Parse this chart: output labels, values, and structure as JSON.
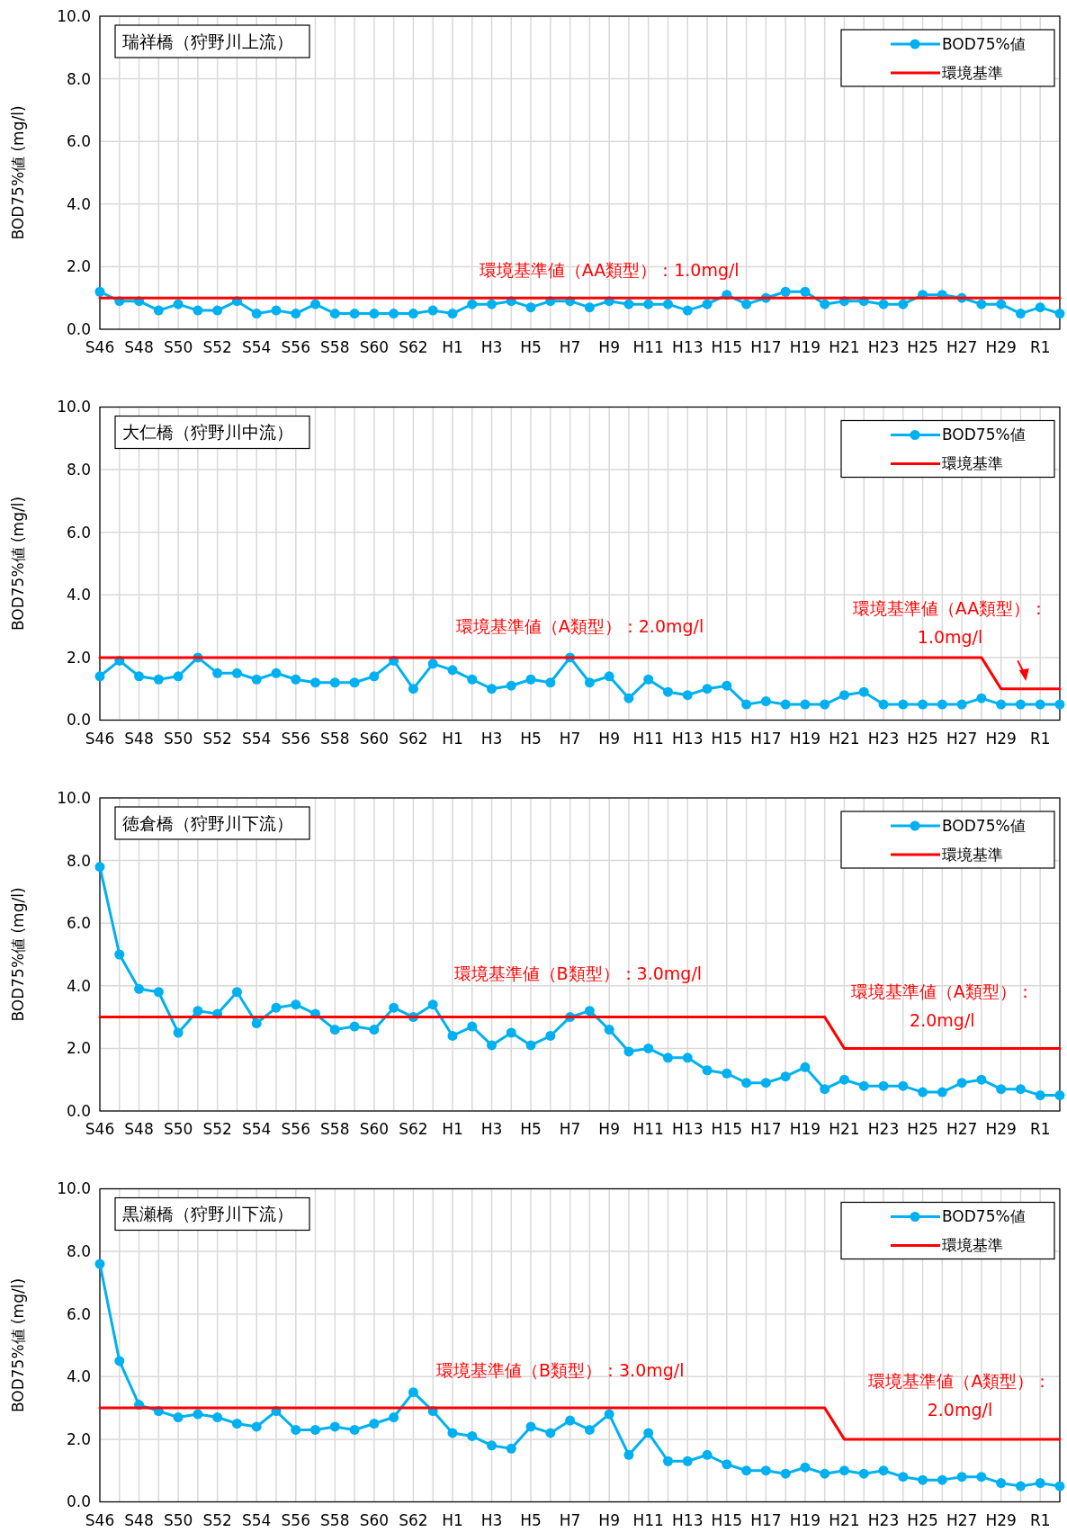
{
  "chart_data": [
    {
      "type": "line",
      "title": "瑞祥橋（狩野川上流）",
      "ylabel": "BOD75%値 (mg/l)",
      "categories": [
        "S46",
        null,
        "S48",
        null,
        "S50",
        null,
        "S52",
        null,
        "S54",
        null,
        "S56",
        null,
        "S58",
        null,
        "S60",
        null,
        "S62",
        null,
        "H1",
        null,
        "H3",
        null,
        "H5",
        null,
        "H7",
        null,
        "H9",
        null,
        "H11",
        null,
        "H13",
        null,
        "H15",
        null,
        "H17",
        null,
        "H19",
        null,
        "H21",
        null,
        "H23",
        null,
        "H25",
        null,
        "H27",
        null,
        "H29",
        null,
        "R1",
        null
      ],
      "series": [
        {
          "name": "BOD75%値",
          "color": "#00b0f0",
          "values": [
            1.2,
            0.9,
            0.9,
            0.6,
            0.8,
            0.6,
            0.6,
            0.9,
            0.5,
            0.6,
            0.5,
            0.8,
            0.5,
            0.5,
            0.5,
            0.5,
            0.5,
            0.6,
            0.5,
            0.8,
            0.8,
            0.9,
            0.7,
            0.9,
            0.9,
            0.7,
            0.9,
            0.8,
            0.8,
            0.8,
            0.6,
            0.8,
            1.1,
            0.8,
            1.0,
            1.2,
            1.2,
            0.8,
            0.9,
            0.9,
            0.8,
            0.8,
            1.1,
            1.1,
            1.0,
            0.8,
            0.8,
            0.5,
            0.7,
            0.5
          ]
        },
        {
          "name": "環境基準",
          "color": "#ff0000",
          "marker": "none",
          "values": [
            1,
            1,
            1,
            1,
            1,
            1,
            1,
            1,
            1,
            1,
            1,
            1,
            1,
            1,
            1,
            1,
            1,
            1,
            1,
            1,
            1,
            1,
            1,
            1,
            1,
            1,
            1,
            1,
            1,
            1,
            1,
            1,
            1,
            1,
            1,
            1,
            1,
            1,
            1,
            1,
            1,
            1,
            1,
            1,
            1,
            1,
            1,
            1,
            1,
            1
          ]
        }
      ],
      "ylim": [
        0,
        10
      ],
      "yticks": [
        {
          "value": 0,
          "label": "0.0"
        },
        {
          "value": 2,
          "label": "2.0"
        },
        {
          "value": 4,
          "label": "4.0"
        },
        {
          "value": 6,
          "label": "6.0"
        },
        {
          "value": 8,
          "label": "8.0"
        },
        {
          "value": 10,
          "label": "10.0"
        }
      ],
      "grid": true,
      "legend": "top right",
      "marker": "circle",
      "annotations": [
        "環境基準値（AA類型）：1.0mg/l"
      ]
    },
    {
      "type": "line",
      "title": "大仁橋（狩野川中流）",
      "ylabel": "BOD75%値 (mg/l)",
      "categories": [
        "S46",
        null,
        "S48",
        null,
        "S50",
        null,
        "S52",
        null,
        "S54",
        null,
        "S56",
        null,
        "S58",
        null,
        "S60",
        null,
        "S62",
        null,
        "H1",
        null,
        "H3",
        null,
        "H5",
        null,
        "H7",
        null,
        "H9",
        null,
        "H11",
        null,
        "H13",
        null,
        "H15",
        null,
        "H17",
        null,
        "H19",
        null,
        "H21",
        null,
        "H23",
        null,
        "H25",
        null,
        "H27",
        null,
        "H29",
        null,
        "R1",
        null
      ],
      "series": [
        {
          "name": "BOD75%値",
          "color": "#00b0f0",
          "values": [
            1.4,
            1.9,
            1.4,
            1.3,
            1.4,
            2.0,
            1.5,
            1.5,
            1.3,
            1.5,
            1.3,
            1.2,
            1.2,
            1.2,
            1.4,
            1.9,
            1.0,
            1.8,
            1.6,
            1.3,
            1.0,
            1.1,
            1.3,
            1.2,
            2.0,
            1.2,
            1.4,
            0.7,
            1.3,
            0.9,
            0.8,
            1.0,
            1.1,
            0.5,
            0.6,
            0.5,
            0.5,
            0.5,
            0.8,
            0.9,
            0.5,
            0.5,
            0.5,
            0.5,
            0.5,
            0.7,
            0.5,
            0.5,
            0.5,
            0.5
          ]
        },
        {
          "name": "環境基準",
          "color": "#ff0000",
          "marker": "none",
          "values": [
            2,
            2,
            2,
            2,
            2,
            2,
            2,
            2,
            2,
            2,
            2,
            2,
            2,
            2,
            2,
            2,
            2,
            2,
            2,
            2,
            2,
            2,
            2,
            2,
            2,
            2,
            2,
            2,
            2,
            2,
            2,
            2,
            2,
            2,
            2,
            2,
            2,
            2,
            2,
            2,
            2,
            2,
            2,
            2,
            2,
            2,
            1,
            1,
            1,
            1
          ]
        }
      ],
      "ylim": [
        0,
        10
      ],
      "yticks": [
        {
          "value": 0,
          "label": "0.0"
        },
        {
          "value": 2,
          "label": "2.0"
        },
        {
          "value": 4,
          "label": "4.0"
        },
        {
          "value": 6,
          "label": "6.0"
        },
        {
          "value": 8,
          "label": "8.0"
        },
        {
          "value": 10,
          "label": "10.0"
        }
      ],
      "grid": true,
      "legend": "top right",
      "marker": "circle",
      "annotations": [
        "環境基準値（A類型）：2.0mg/l",
        "環境基準値（AA類型）：1.0mg/l"
      ]
    },
    {
      "type": "line",
      "title": "徳倉橋（狩野川下流）",
      "ylabel": "BOD75%値 (mg/l)",
      "categories": [
        "S46",
        null,
        "S48",
        null,
        "S50",
        null,
        "S52",
        null,
        "S54",
        null,
        "S56",
        null,
        "S58",
        null,
        "S60",
        null,
        "S62",
        null,
        "H1",
        null,
        "H3",
        null,
        "H5",
        null,
        "H7",
        null,
        "H9",
        null,
        "H11",
        null,
        "H13",
        null,
        "H15",
        null,
        "H17",
        null,
        "H19",
        null,
        "H21",
        null,
        "H23",
        null,
        "H25",
        null,
        "H27",
        null,
        "H29",
        null,
        "R1",
        null
      ],
      "series": [
        {
          "name": "BOD75%値",
          "color": "#00b0f0",
          "values": [
            7.8,
            5.0,
            3.9,
            3.8,
            2.5,
            3.2,
            3.1,
            3.8,
            2.8,
            3.3,
            3.4,
            3.1,
            2.6,
            2.7,
            2.6,
            3.3,
            3.0,
            3.4,
            2.4,
            2.7,
            2.1,
            2.5,
            2.1,
            2.4,
            3.0,
            3.2,
            2.6,
            1.9,
            2.0,
            1.7,
            1.7,
            1.3,
            1.2,
            0.9,
            0.9,
            1.1,
            1.4,
            0.7,
            1.0,
            0.8,
            0.8,
            0.8,
            0.6,
            0.6,
            0.9,
            1.0,
            0.7,
            0.7,
            0.5,
            0.5
          ]
        },
        {
          "name": "環境基準",
          "color": "#ff0000",
          "marker": "none",
          "values": [
            3,
            3,
            3,
            3,
            3,
            3,
            3,
            3,
            3,
            3,
            3,
            3,
            3,
            3,
            3,
            3,
            3,
            3,
            3,
            3,
            3,
            3,
            3,
            3,
            3,
            3,
            3,
            3,
            3,
            3,
            3,
            3,
            3,
            3,
            3,
            3,
            3,
            3,
            2,
            2,
            2,
            2,
            2,
            2,
            2,
            2,
            2,
            2,
            2,
            2
          ]
        }
      ],
      "ylim": [
        0,
        10
      ],
      "yticks": [
        {
          "value": 0,
          "label": "0.0"
        },
        {
          "value": 2,
          "label": "2.0"
        },
        {
          "value": 4,
          "label": "4.0"
        },
        {
          "value": 6,
          "label": "6.0"
        },
        {
          "value": 8,
          "label": "8.0"
        },
        {
          "value": 10,
          "label": "10.0"
        }
      ],
      "grid": true,
      "legend": "top right",
      "marker": "circle",
      "annotations": [
        "環境基準値（B類型）：3.0mg/l",
        "環境基準値（A類型）：2.0mg/l"
      ]
    },
    {
      "type": "line",
      "title": "黒瀬橋（狩野川下流）",
      "ylabel": "BOD75%値 (mg/l)",
      "categories": [
        "S46",
        null,
        "S48",
        null,
        "S50",
        null,
        "S52",
        null,
        "S54",
        null,
        "S56",
        null,
        "S58",
        null,
        "S60",
        null,
        "S62",
        null,
        "H1",
        null,
        "H3",
        null,
        "H5",
        null,
        "H7",
        null,
        "H9",
        null,
        "H11",
        null,
        "H13",
        null,
        "H15",
        null,
        "H17",
        null,
        "H19",
        null,
        "H21",
        null,
        "H23",
        null,
        "H25",
        null,
        "H27",
        null,
        "H29",
        null,
        "R1",
        null
      ],
      "series": [
        {
          "name": "BOD75%値",
          "color": "#00b0f0",
          "values": [
            7.6,
            4.5,
            3.1,
            2.9,
            2.7,
            2.8,
            2.7,
            2.5,
            2.4,
            2.9,
            2.3,
            2.3,
            2.4,
            2.3,
            2.5,
            2.7,
            3.5,
            2.9,
            2.2,
            2.1,
            1.8,
            1.7,
            2.4,
            2.2,
            2.6,
            2.3,
            2.8,
            1.5,
            2.2,
            1.3,
            1.3,
            1.5,
            1.2,
            1.0,
            1.0,
            0.9,
            1.1,
            0.9,
            1.0,
            0.9,
            1.0,
            0.8,
            0.7,
            0.7,
            0.8,
            0.8,
            0.6,
            0.5,
            0.6,
            0.5
          ]
        },
        {
          "name": "環境基準",
          "color": "#ff0000",
          "marker": "none",
          "values": [
            3,
            3,
            3,
            3,
            3,
            3,
            3,
            3,
            3,
            3,
            3,
            3,
            3,
            3,
            3,
            3,
            3,
            3,
            3,
            3,
            3,
            3,
            3,
            3,
            3,
            3,
            3,
            3,
            3,
            3,
            3,
            3,
            3,
            3,
            3,
            3,
            3,
            3,
            2,
            2,
            2,
            2,
            2,
            2,
            2,
            2,
            2,
            2,
            2,
            2
          ]
        }
      ],
      "ylim": [
        0,
        10
      ],
      "yticks": [
        {
          "value": 0,
          "label": "0.0"
        },
        {
          "value": 2,
          "label": "2.0"
        },
        {
          "value": 4,
          "label": "4.0"
        },
        {
          "value": 6,
          "label": "6.0"
        },
        {
          "value": 8,
          "label": "8.0"
        },
        {
          "value": 10,
          "label": "10.0"
        }
      ],
      "grid": true,
      "legend": "top right",
      "marker": "circle",
      "annotations": [
        "環境基準値（B類型）：3.0mg/l",
        "環境基準値（A類型）：2.0mg/l"
      ]
    }
  ]
}
